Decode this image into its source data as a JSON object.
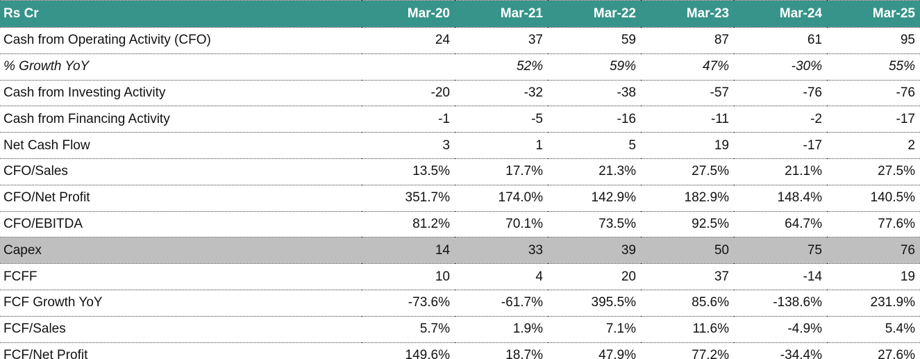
{
  "colors": {
    "header_bg": "#37948A",
    "header_text": "#FFFFFF",
    "highlight_row_bg": "#BFBFBF",
    "body_text": "#111111",
    "row_divider": "#3B3B3B"
  },
  "chart_data": {
    "type": "table",
    "unit_label": "Rs Cr",
    "columns": [
      "Mar-20",
      "Mar-21",
      "Mar-22",
      "Mar-23",
      "Mar-24",
      "Mar-25"
    ],
    "rows": [
      {
        "label": "Cash from Operating Activity (CFO)",
        "variant": "normal",
        "values": [
          "24",
          "37",
          "59",
          "87",
          "61",
          "95"
        ]
      },
      {
        "label": "% Growth YoY",
        "variant": "italic",
        "values": [
          "",
          "52%",
          "59%",
          "47%",
          "-30%",
          "55%"
        ]
      },
      {
        "label": "Cash from Investing Activity",
        "variant": "normal",
        "values": [
          "-20",
          "-32",
          "-38",
          "-57",
          "-76",
          "-76"
        ]
      },
      {
        "label": "Cash from Financing Activity",
        "variant": "normal",
        "values": [
          "-1",
          "-5",
          "-16",
          "-11",
          "-2",
          "-17"
        ]
      },
      {
        "label": "Net Cash Flow",
        "variant": "normal",
        "values": [
          "3",
          "1",
          "5",
          "19",
          "-17",
          "2"
        ]
      },
      {
        "label": "CFO/Sales",
        "variant": "normal",
        "values": [
          "13.5%",
          "17.7%",
          "21.3%",
          "27.5%",
          "21.1%",
          "27.5%"
        ]
      },
      {
        "label": "CFO/Net Profit",
        "variant": "normal",
        "values": [
          "351.7%",
          "174.0%",
          "142.9%",
          "182.9%",
          "148.4%",
          "140.5%"
        ]
      },
      {
        "label": "CFO/EBITDA",
        "variant": "normal",
        "values": [
          "81.2%",
          "70.1%",
          "73.5%",
          "92.5%",
          "64.7%",
          "77.6%"
        ]
      },
      {
        "label": "Capex",
        "variant": "highlight",
        "values": [
          "14",
          "33",
          "39",
          "50",
          "75",
          "76"
        ]
      },
      {
        "label": "FCFF",
        "variant": "normal",
        "values": [
          "10",
          "4",
          "20",
          "37",
          "-14",
          "19"
        ]
      },
      {
        "label": "FCF Growth YoY",
        "variant": "normal",
        "values": [
          "-73.6%",
          "-61.7%",
          "395.5%",
          "85.6%",
          "-138.6%",
          "231.9%"
        ]
      },
      {
        "label": "FCF/Sales",
        "variant": "normal",
        "values": [
          "5.7%",
          "1.9%",
          "7.1%",
          "11.6%",
          "-4.9%",
          "5.4%"
        ]
      },
      {
        "label": "FCF/Net Profit",
        "variant": "normal",
        "values": [
          "149.6%",
          "18.7%",
          "47.9%",
          "77.2%",
          "-34.4%",
          "27.6%"
        ]
      }
    ]
  }
}
